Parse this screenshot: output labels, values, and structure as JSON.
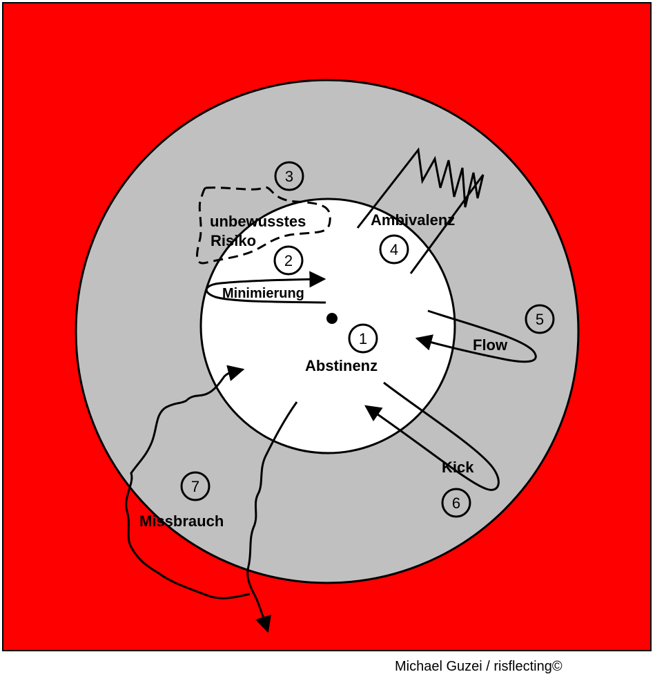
{
  "colors": {
    "background": "#ff0000",
    "outer_zone": "#c0c0c0",
    "inner_zone": "#ffffff",
    "ink": "#000000"
  },
  "labels": {
    "abstinenz": "Abstinenz",
    "minimierung": "Minimierung",
    "unbewusstes_line1": "unbewusstes",
    "unbewusstes_line2": "Risiko",
    "ambivalenz": "Ambivalenz",
    "flow": "Flow",
    "kick": "Kick",
    "missbrauch": "Missbrauch"
  },
  "numbers": {
    "n1": "1",
    "n2": "2",
    "n3": "3",
    "n4": "4",
    "n5": "5",
    "n6": "6",
    "n7": "7"
  },
  "credit": "Michael Guzei / risflecting©"
}
